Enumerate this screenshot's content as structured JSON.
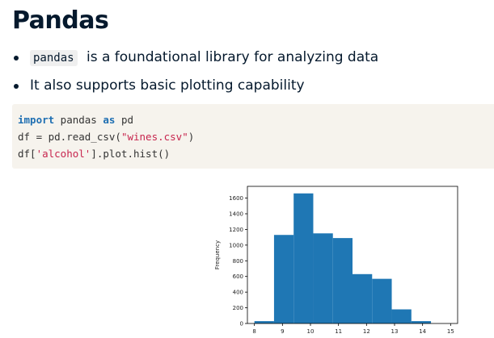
{
  "slide": {
    "title": "Pandas",
    "bullets": [
      {
        "code": "pandas",
        "text": " is a foundational library for analyzing data"
      },
      {
        "text": "It also supports basic plotting capability"
      }
    ],
    "code": {
      "line1": {
        "kw1": "import",
        "mid": " pandas ",
        "kw2": "as",
        "rest": " pd"
      },
      "line2": {
        "pre": "df = pd.read_csv(",
        "str": "\"wines.csv\"",
        "post": ")"
      },
      "line3": {
        "pre": "df[",
        "str": "'alcohol'",
        "post": "].plot.hist()"
      }
    }
  },
  "colors": {
    "bar": "#1f77b4",
    "keyword": "#1f6fb2",
    "string": "#c7254e"
  },
  "chart_data": {
    "type": "bar",
    "title": "",
    "xlabel": "",
    "ylabel": "Frequency",
    "bins": [
      {
        "x0": 8.0,
        "x1": 8.7,
        "value": 30
      },
      {
        "x0": 8.7,
        "x1": 9.4,
        "value": 1130
      },
      {
        "x0": 9.4,
        "x1": 10.1,
        "value": 1660
      },
      {
        "x0": 10.1,
        "x1": 10.8,
        "value": 1150
      },
      {
        "x0": 10.8,
        "x1": 11.5,
        "value": 1090
      },
      {
        "x0": 11.5,
        "x1": 12.2,
        "value": 630
      },
      {
        "x0": 12.2,
        "x1": 12.9,
        "value": 570
      },
      {
        "x0": 12.9,
        "x1": 13.6,
        "value": 180
      },
      {
        "x0": 13.6,
        "x1": 14.3,
        "value": 30
      }
    ],
    "xlim": [
      7.75,
      15.25
    ],
    "ylim": [
      0,
      1750
    ],
    "xticks": [
      "8",
      "9",
      "10",
      "11",
      "12",
      "13",
      "14",
      "15"
    ],
    "yticks": [
      "0",
      "200",
      "400",
      "600",
      "800",
      "1000",
      "1200",
      "1400",
      "1600"
    ],
    "grid": false
  }
}
